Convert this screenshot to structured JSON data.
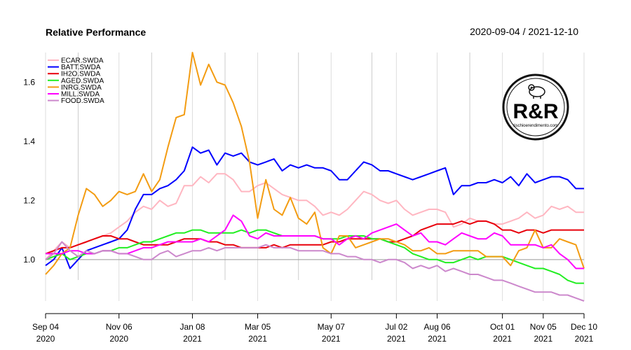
{
  "chart_data": {
    "type": "line",
    "title": "Relative Performance",
    "date_range": "2020-09-04 / 2021-12-10",
    "xlabel": "",
    "ylabel": "",
    "ylim": [
      0.86,
      1.7
    ],
    "y_ticks": [
      "1.0",
      "1.2",
      "1.4",
      "1.6"
    ],
    "x_ticks": [
      {
        "t": 0,
        "line1": "Sep 04",
        "line2": "2020"
      },
      {
        "t": 9,
        "line1": "Nov 06",
        "line2": "2020"
      },
      {
        "t": 18,
        "line1": "Jan 08",
        "line2": "2021"
      },
      {
        "t": 26,
        "line1": "Mar 05",
        "line2": "2021"
      },
      {
        "t": 35,
        "line1": "May 07",
        "line2": "2021"
      },
      {
        "t": 43,
        "line1": "Jul 02",
        "line2": "2021"
      },
      {
        "t": 48,
        "line1": "Aug 06",
        "line2": "2021"
      },
      {
        "t": 56,
        "line1": "Oct 01",
        "line2": "2021"
      },
      {
        "t": 61,
        "line1": "Nov 05",
        "line2": "2021"
      },
      {
        "t": 66,
        "line1": "Dec 10",
        "line2": "2021"
      }
    ],
    "minor_ticks": [
      4,
      13,
      22,
      31,
      40,
      52
    ],
    "x": [
      0,
      1,
      2,
      3,
      4,
      5,
      6,
      7,
      8,
      9,
      10,
      11,
      12,
      13,
      14,
      15,
      16,
      17,
      18,
      19,
      20,
      21,
      22,
      23,
      24,
      25,
      26,
      27,
      28,
      29,
      30,
      31,
      32,
      33,
      34,
      35,
      36,
      37,
      38,
      39,
      40,
      41,
      42,
      43,
      44,
      45,
      46,
      47,
      48,
      49,
      50,
      51,
      52,
      53,
      54,
      55,
      56,
      57,
      58,
      59,
      60,
      61,
      62,
      63,
      64,
      65,
      66
    ],
    "legend_position": "top-left",
    "series": [
      {
        "name": "ECAR.SWDA",
        "color": "#ffb6c1",
        "values": [
          1.0,
          1.03,
          1.06,
          1.04,
          1.05,
          1.06,
          1.07,
          1.08,
          1.09,
          1.11,
          1.13,
          1.16,
          1.18,
          1.17,
          1.2,
          1.18,
          1.19,
          1.25,
          1.25,
          1.28,
          1.26,
          1.29,
          1.29,
          1.27,
          1.23,
          1.23,
          1.25,
          1.26,
          1.24,
          1.22,
          1.21,
          1.2,
          1.2,
          1.18,
          1.15,
          1.16,
          1.15,
          1.17,
          1.2,
          1.23,
          1.22,
          1.2,
          1.19,
          1.2,
          1.17,
          1.15,
          1.16,
          1.17,
          1.17,
          1.16,
          1.11,
          1.12,
          1.14,
          1.13,
          1.13,
          1.12,
          1.12,
          1.13,
          1.14,
          1.16,
          1.14,
          1.15,
          1.18,
          1.17,
          1.18,
          1.16,
          1.16
        ]
      },
      {
        "name": "BATT.SWDA",
        "color": "#0000ff",
        "values": [
          0.98,
          1.0,
          1.04,
          0.97,
          1.0,
          1.03,
          1.04,
          1.05,
          1.06,
          1.07,
          1.1,
          1.17,
          1.22,
          1.22,
          1.24,
          1.25,
          1.27,
          1.3,
          1.38,
          1.36,
          1.37,
          1.32,
          1.36,
          1.35,
          1.36,
          1.33,
          1.32,
          1.33,
          1.34,
          1.3,
          1.32,
          1.31,
          1.32,
          1.31,
          1.31,
          1.3,
          1.27,
          1.27,
          1.3,
          1.33,
          1.32,
          1.3,
          1.3,
          1.29,
          1.28,
          1.27,
          1.28,
          1.29,
          1.3,
          1.31,
          1.22,
          1.25,
          1.25,
          1.26,
          1.26,
          1.27,
          1.26,
          1.28,
          1.25,
          1.29,
          1.26,
          1.27,
          1.28,
          1.28,
          1.27,
          1.24,
          1.24
        ]
      },
      {
        "name": "IH2O.SWDA",
        "color": "#e8000b",
        "values": [
          1.02,
          1.03,
          1.04,
          1.04,
          1.05,
          1.06,
          1.07,
          1.08,
          1.08,
          1.07,
          1.07,
          1.06,
          1.05,
          1.05,
          1.05,
          1.05,
          1.06,
          1.07,
          1.07,
          1.07,
          1.06,
          1.06,
          1.05,
          1.05,
          1.04,
          1.04,
          1.04,
          1.04,
          1.05,
          1.04,
          1.05,
          1.05,
          1.05,
          1.05,
          1.05,
          1.06,
          1.06,
          1.07,
          1.07,
          1.07,
          1.07,
          1.07,
          1.06,
          1.06,
          1.07,
          1.08,
          1.1,
          1.11,
          1.12,
          1.12,
          1.12,
          1.13,
          1.12,
          1.13,
          1.13,
          1.12,
          1.1,
          1.1,
          1.09,
          1.1,
          1.1,
          1.09,
          1.1,
          1.1,
          1.1,
          1.1,
          1.1
        ]
      },
      {
        "name": "AGED.SWDA",
        "color": "#22ee22",
        "values": [
          1.0,
          1.01,
          1.02,
          1.0,
          1.01,
          1.02,
          1.02,
          1.03,
          1.03,
          1.04,
          1.04,
          1.05,
          1.06,
          1.06,
          1.07,
          1.08,
          1.09,
          1.09,
          1.1,
          1.1,
          1.09,
          1.09,
          1.09,
          1.09,
          1.1,
          1.09,
          1.1,
          1.1,
          1.09,
          1.08,
          1.08,
          1.08,
          1.08,
          1.08,
          1.07,
          1.07,
          1.07,
          1.08,
          1.08,
          1.08,
          1.07,
          1.07,
          1.06,
          1.05,
          1.04,
          1.02,
          1.01,
          1.0,
          1.0,
          0.99,
          0.99,
          1.0,
          1.01,
          1.0,
          1.01,
          1.01,
          1.01,
          1.0,
          0.99,
          0.98,
          0.97,
          0.97,
          0.96,
          0.95,
          0.93,
          0.92,
          0.92
        ]
      },
      {
        "name": "INRG.SWDA",
        "color": "#f39c12",
        "values": [
          0.95,
          0.98,
          1.02,
          1.04,
          1.15,
          1.24,
          1.22,
          1.18,
          1.2,
          1.23,
          1.22,
          1.23,
          1.29,
          1.23,
          1.27,
          1.38,
          1.48,
          1.49,
          1.7,
          1.59,
          1.66,
          1.6,
          1.59,
          1.53,
          1.45,
          1.33,
          1.14,
          1.27,
          1.17,
          1.15,
          1.21,
          1.14,
          1.12,
          1.16,
          1.04,
          1.02,
          1.08,
          1.08,
          1.04,
          1.05,
          1.06,
          1.07,
          1.07,
          1.06,
          1.05,
          1.03,
          1.03,
          1.04,
          1.02,
          1.02,
          1.03,
          1.03,
          1.03,
          1.03,
          1.01,
          1.01,
          1.01,
          0.98,
          1.03,
          1.04,
          1.1,
          1.04,
          1.04,
          1.07,
          1.06,
          1.05,
          0.97
        ]
      },
      {
        "name": "MILL.SWDA",
        "color": "#ff00ff",
        "values": [
          1.02,
          1.02,
          1.02,
          1.03,
          1.03,
          1.02,
          1.02,
          1.03,
          1.03,
          1.02,
          1.02,
          1.03,
          1.04,
          1.04,
          1.05,
          1.06,
          1.06,
          1.06,
          1.06,
          1.07,
          1.06,
          1.08,
          1.1,
          1.15,
          1.13,
          1.08,
          1.07,
          1.09,
          1.08,
          1.08,
          1.08,
          1.08,
          1.08,
          1.08,
          1.07,
          1.07,
          1.05,
          1.07,
          1.08,
          1.07,
          1.09,
          1.1,
          1.11,
          1.12,
          1.1,
          1.08,
          1.09,
          1.06,
          1.06,
          1.05,
          1.07,
          1.09,
          1.08,
          1.07,
          1.07,
          1.09,
          1.08,
          1.05,
          1.05,
          1.05,
          1.05,
          1.04,
          1.05,
          1.02,
          1.0,
          0.97,
          0.97
        ]
      },
      {
        "name": "FOOD.SWDA",
        "color": "#cc88cc",
        "values": [
          1.0,
          1.02,
          1.06,
          1.03,
          1.01,
          1.03,
          1.02,
          1.03,
          1.03,
          1.02,
          1.02,
          1.01,
          1.0,
          1.0,
          1.02,
          1.03,
          1.01,
          1.02,
          1.03,
          1.03,
          1.04,
          1.03,
          1.04,
          1.04,
          1.04,
          1.04,
          1.04,
          1.05,
          1.04,
          1.04,
          1.04,
          1.03,
          1.03,
          1.03,
          1.03,
          1.02,
          1.02,
          1.01,
          1.01,
          1.0,
          1.0,
          0.99,
          1.0,
          1.0,
          0.99,
          0.97,
          0.98,
          0.97,
          0.98,
          0.96,
          0.97,
          0.96,
          0.95,
          0.95,
          0.94,
          0.93,
          0.93,
          0.92,
          0.91,
          0.9,
          0.89,
          0.89,
          0.89,
          0.88,
          0.88,
          0.87,
          0.86
        ]
      }
    ]
  },
  "logo": {
    "text": "R&R",
    "url": "rischioerendimento.com",
    "icon": "gear-piggy-bank-icon"
  }
}
